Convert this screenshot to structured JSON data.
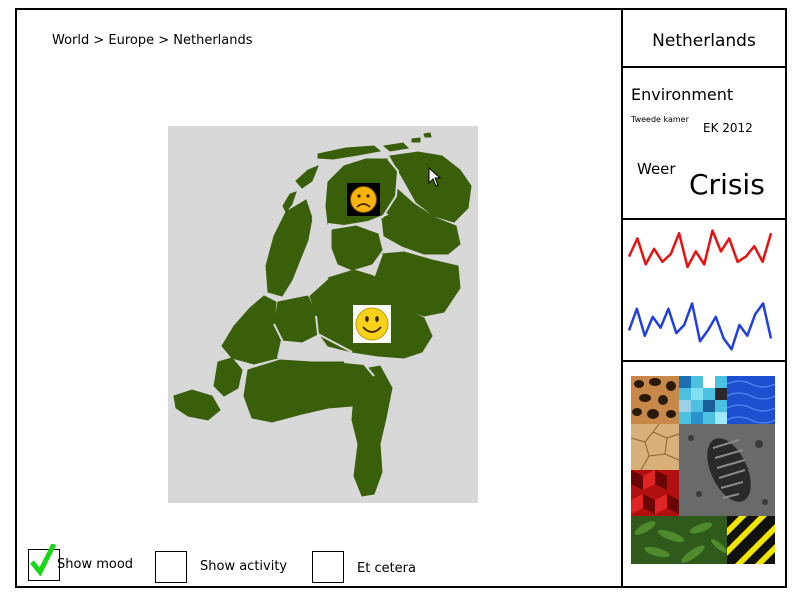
{
  "breadcrumb": "World > Europe > Netherlands",
  "region": {
    "title": "Netherlands"
  },
  "environment": {
    "title": "Environment",
    "party": "Tweede kamer",
    "event": "EK 2012",
    "weather_label": "Weer",
    "status": "Crisis"
  },
  "map": {
    "province_color": "#3a5f0b",
    "background_color": "#d8d8d8",
    "moods": [
      "sad",
      "happy"
    ]
  },
  "graph": {
    "series": [
      {
        "color": "#e81010",
        "values": [
          0.55,
          0.2,
          0.7,
          0.4,
          0.65,
          0.5,
          0.1,
          0.75,
          0.45,
          0.7,
          0.05,
          0.45,
          0.2,
          0.65,
          0.55,
          0.35,
          0.65,
          0.1
        ]
      },
      {
        "color": "#1f3fe0",
        "values": [
          0.6,
          0.2,
          0.7,
          0.35,
          0.55,
          0.2,
          0.65,
          0.5,
          0.1,
          0.8,
          0.6,
          0.35,
          0.75,
          0.95,
          0.5,
          0.7,
          0.3,
          0.1,
          0.75
        ]
      }
    ]
  },
  "textures": [
    "leopard",
    "mosaic",
    "water",
    "cracked-earth",
    "footprint",
    "red-cubes",
    "leaves",
    "hazard-stripes"
  ],
  "checkboxes": [
    {
      "label": "Show mood",
      "checked": true
    },
    {
      "label": "Show activity",
      "checked": false
    },
    {
      "label": "Et cetera",
      "checked": false
    }
  ]
}
